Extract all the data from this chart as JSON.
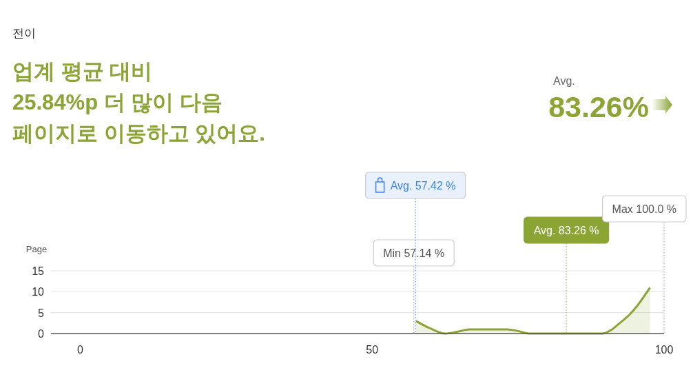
{
  "chart_data": {
    "type": "area",
    "title": "전이",
    "subtitle": "업계 평균 대비\n25.84%p 더 많이 다음\n페이지로 이동하고 있어요.",
    "annotations": [
      "Avg.",
      "83.26%"
    ],
    "ylabel": "Page",
    "x": [
      57.5,
      60,
      62.5,
      64.5,
      66.7,
      70,
      73.1,
      75,
      76.9,
      80,
      84,
      89.4,
      91,
      92.4,
      94,
      95.5,
      97.6
    ],
    "series": [
      {
        "color": "#8aa534",
        "values": [
          3.0,
          1.2,
          0,
          0.4,
          1.0,
          1.0,
          1.0,
          0.6,
          0,
          0,
          0,
          0,
          0.9,
          2.5,
          4.4,
          6.8,
          11.0
        ]
      }
    ],
    "xlim": [
      -5,
      100
    ],
    "xticks": [
      0,
      50,
      100
    ],
    "ylim": [
      0,
      15
    ],
    "yticks": [
      0,
      5,
      10,
      15
    ],
    "grid": "y",
    "marker": "none",
    "ref_lines": [
      {
        "axis": "x",
        "value": 57.14,
        "label": "Min 57.14 %",
        "line_style": "dotted"
      },
      {
        "axis": "x",
        "value": 57.42,
        "label": "Avg. 57.42 %",
        "color": "#3b82f6",
        "line_style": "dotted"
      },
      {
        "axis": "x",
        "value": 83.26,
        "label": "Avg. 83.26 %",
        "color": "#8aa534",
        "line_style": "dotted"
      },
      {
        "axis": "x",
        "value": 100,
        "label": "Max 100.0 %",
        "line_style": "dotted"
      }
    ]
  }
}
